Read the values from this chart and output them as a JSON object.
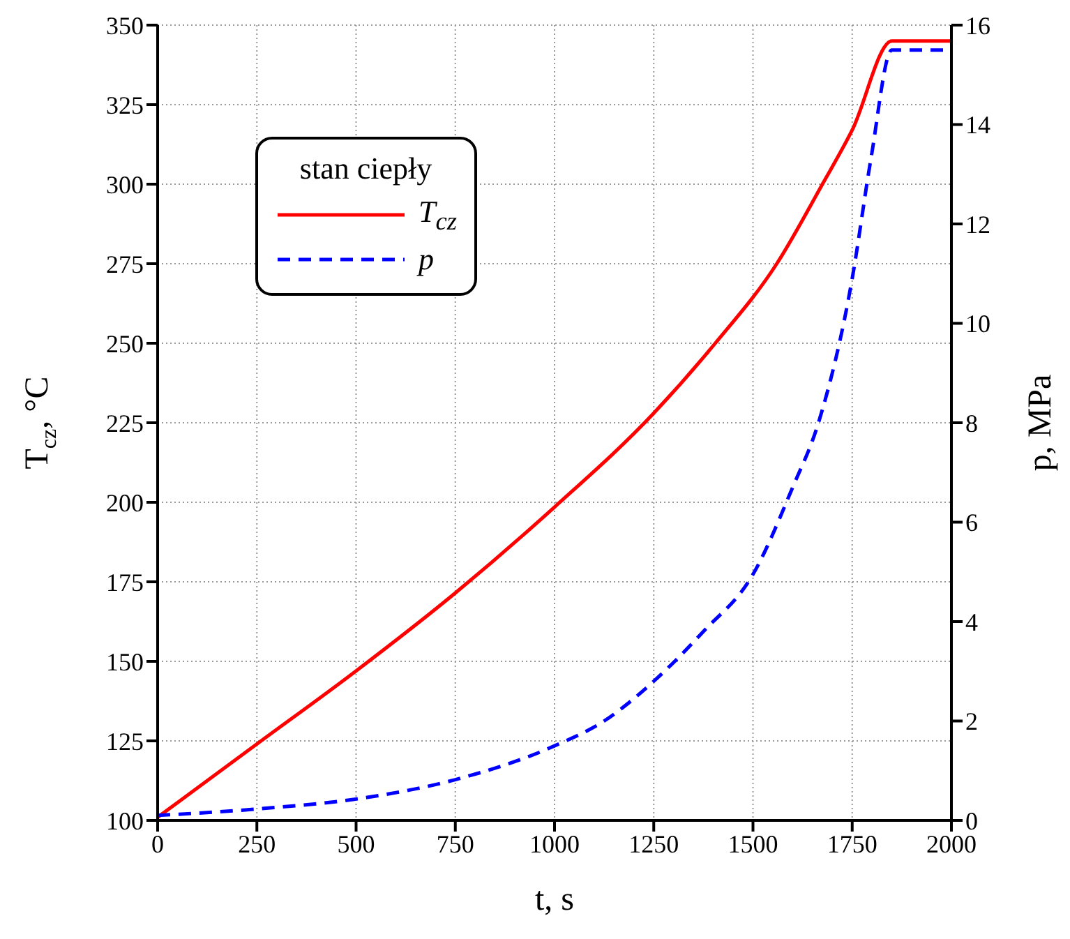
{
  "chart_data": {
    "type": "line",
    "xlabel": "t, s",
    "ylabel": "T$_{cz}$, °C",
    "y2label": "p, MPa",
    "legend_title": "stan ciepły",
    "xlim": [
      0,
      2000
    ],
    "xticks": [
      0,
      250,
      500,
      750,
      1000,
      1250,
      1500,
      1750,
      2000
    ],
    "ylim": [
      100,
      350
    ],
    "yticks": [
      100,
      125,
      150,
      175,
      200,
      225,
      250,
      275,
      300,
      325,
      350
    ],
    "y2lim": [
      0,
      16
    ],
    "y2ticks": [
      0,
      2,
      4,
      6,
      8,
      10,
      12,
      14,
      16
    ],
    "grid": true,
    "legend": "top left",
    "series": [
      {
        "name": "T$_{cz}$",
        "color": "#ff0000",
        "line_style": "solid",
        "x": [
          0,
          250,
          500,
          750,
          1000,
          1250,
          1405,
          1560,
          1675,
          1750,
          1850,
          2000
        ],
        "values": [
          101,
          124,
          147,
          171.5,
          198.5,
          228,
          250,
          275,
          300,
          317,
          345,
          345
        ]
      },
      {
        "name": "p",
        "color": "#0000ff",
        "line_style": "dashed",
        "axis": "y2",
        "x": [
          0,
          250,
          500,
          750,
          1000,
          1125,
          1250,
          1375,
          1500,
          1600,
          1665,
          1750,
          1797,
          1850,
          2000
        ],
        "values": [
          0.1,
          0.23,
          0.43,
          0.82,
          1.5,
          2.0,
          2.8,
          3.8,
          4.95,
          6.7,
          8,
          10.9,
          13.3,
          15.5,
          15.5
        ]
      }
    ]
  }
}
